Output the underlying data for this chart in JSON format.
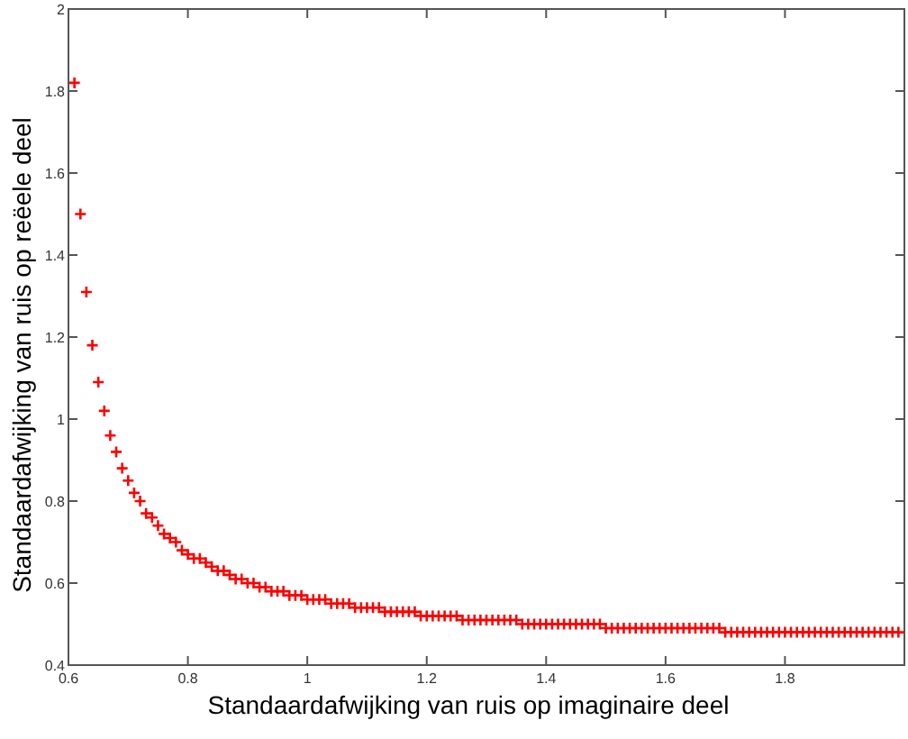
{
  "chart_data": {
    "type": "scatter",
    "xlabel": "Standaardafwijking van ruis op imaginaire deel",
    "ylabel": "Standaardafwijking van ruis op reëele deel",
    "xlim": [
      0.6,
      2
    ],
    "ylim": [
      0.4,
      2
    ],
    "xticks": [
      {
        "value": 0.6,
        "label": "0.6"
      },
      {
        "value": 0.8,
        "label": "0.8"
      },
      1,
      {
        "value": 1.2,
        "label": "1.2"
      },
      {
        "value": 1.4,
        "label": "1.4"
      },
      {
        "value": 1.6,
        "label": "1.6"
      },
      {
        "value": 1.8,
        "label": "1.8"
      }
    ],
    "yticks": [
      {
        "value": 0.4,
        "label": "0.4"
      },
      {
        "value": 0.6,
        "label": "0.6"
      },
      {
        "value": 0.8,
        "label": "0.8"
      },
      1,
      {
        "value": 1.2,
        "label": "1.2"
      },
      {
        "value": 1.4,
        "label": "1.4"
      },
      {
        "value": 1.6,
        "label": "1.6"
      },
      {
        "value": 1.8,
        "label": "1.8"
      },
      2
    ],
    "marker": "cross",
    "grid": false,
    "series": [
      {
        "color": "#ff0000",
        "x": [
          0.61,
          0.62,
          0.63,
          0.64,
          0.65,
          0.66,
          0.67,
          0.68,
          0.69,
          0.7,
          0.71,
          0.72,
          0.73,
          0.74,
          0.75,
          0.76,
          0.77,
          0.78,
          0.79,
          0.8,
          0.81,
          0.82,
          0.83,
          0.84,
          0.85,
          0.86,
          0.87,
          0.88,
          0.89,
          0.9,
          0.91,
          0.92,
          0.93,
          0.94,
          0.95,
          0.96,
          0.97,
          0.98,
          0.99,
          1.0,
          1.01,
          1.02,
          1.03,
          1.04,
          1.05,
          1.06,
          1.07,
          1.08,
          1.09,
          1.1,
          1.11,
          1.12,
          1.13,
          1.14,
          1.15,
          1.16,
          1.17,
          1.18,
          1.19,
          1.2,
          1.21,
          1.22,
          1.23,
          1.24,
          1.25,
          1.26,
          1.27,
          1.28,
          1.29,
          1.3,
          1.31,
          1.32,
          1.33,
          1.34,
          1.35,
          1.36,
          1.37,
          1.38,
          1.39,
          1.4,
          1.41,
          1.42,
          1.43,
          1.44,
          1.45,
          1.46,
          1.47,
          1.48,
          1.49,
          1.5,
          1.51,
          1.52,
          1.53,
          1.54,
          1.55,
          1.56,
          1.57,
          1.58,
          1.59,
          1.6,
          1.61,
          1.62,
          1.63,
          1.64,
          1.65,
          1.66,
          1.67,
          1.68,
          1.69,
          1.7,
          1.71,
          1.72,
          1.73,
          1.74,
          1.75,
          1.76,
          1.77,
          1.78,
          1.79,
          1.8,
          1.81,
          1.82,
          1.83,
          1.84,
          1.85,
          1.86,
          1.87,
          1.88,
          1.89,
          1.9,
          1.91,
          1.92,
          1.93,
          1.94,
          1.95,
          1.96,
          1.97,
          1.98,
          1.99
        ],
        "values": [
          1.82,
          1.5,
          1.31,
          1.18,
          1.09,
          1.02,
          0.96,
          0.92,
          0.88,
          0.85,
          0.82,
          0.8,
          0.77,
          0.76,
          0.74,
          0.72,
          0.71,
          0.7,
          0.68,
          0.67,
          0.66,
          0.66,
          0.65,
          0.64,
          0.63,
          0.63,
          0.62,
          0.61,
          0.61,
          0.6,
          0.6,
          0.59,
          0.59,
          0.58,
          0.58,
          0.58,
          0.57,
          0.57,
          0.57,
          0.56,
          0.56,
          0.56,
          0.56,
          0.55,
          0.55,
          0.55,
          0.55,
          0.54,
          0.54,
          0.54,
          0.54,
          0.54,
          0.53,
          0.53,
          0.53,
          0.53,
          0.53,
          0.53,
          0.52,
          0.52,
          0.52,
          0.52,
          0.52,
          0.52,
          0.52,
          0.51,
          0.51,
          0.51,
          0.51,
          0.51,
          0.51,
          0.51,
          0.51,
          0.51,
          0.51,
          0.5,
          0.5,
          0.5,
          0.5,
          0.5,
          0.5,
          0.5,
          0.5,
          0.5,
          0.5,
          0.5,
          0.5,
          0.5,
          0.5,
          0.49,
          0.49,
          0.49,
          0.49,
          0.49,
          0.49,
          0.49,
          0.49,
          0.49,
          0.49,
          0.49,
          0.49,
          0.49,
          0.49,
          0.49,
          0.49,
          0.49,
          0.49,
          0.49,
          0.49,
          0.48,
          0.48,
          0.48,
          0.48,
          0.48,
          0.48,
          0.48,
          0.48,
          0.48,
          0.48,
          0.48,
          0.48,
          0.48,
          0.48,
          0.48,
          0.48,
          0.48,
          0.48,
          0.48,
          0.48,
          0.48,
          0.48,
          0.48,
          0.48,
          0.48,
          0.48,
          0.48,
          0.48,
          0.48,
          0.48
        ]
      }
    ]
  }
}
